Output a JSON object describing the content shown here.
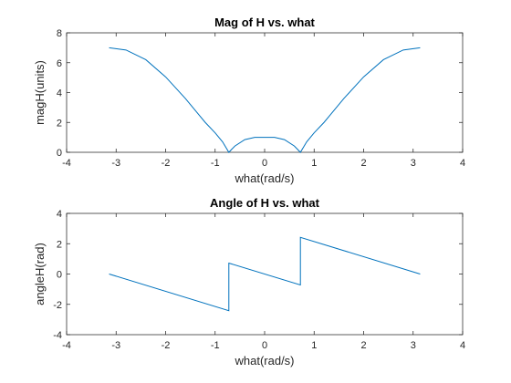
{
  "figure": {
    "background": "#ffffff",
    "line_color": "#0072BD"
  },
  "chart_data": [
    {
      "type": "line",
      "title": "Mag of H vs. what",
      "xlabel": "what(rad/s)",
      "ylabel": "magH(units)",
      "xlim": [
        -4,
        4
      ],
      "ylim": [
        0,
        8
      ],
      "xticks": [
        -4,
        -3,
        -2,
        -1,
        0,
        1,
        2,
        3,
        4
      ],
      "yticks": [
        0,
        2,
        4,
        6,
        8
      ],
      "grid": false,
      "series": [
        {
          "x": [
            -3.1416,
            -2.8,
            -2.4,
            -2.0,
            -1.6,
            -1.2,
            -1.0,
            -0.85,
            -0.7227,
            -0.6,
            -0.4,
            -0.2,
            0.0,
            0.2,
            0.4,
            0.6,
            0.7227,
            0.85,
            1.0,
            1.2,
            1.6,
            2.0,
            2.4,
            2.8,
            3.1416
          ],
          "y": [
            7.0,
            6.85,
            6.2,
            5.05,
            3.6,
            2.0,
            1.3,
            0.7,
            0.0,
            0.42,
            0.85,
            1.0,
            1.0,
            1.0,
            0.85,
            0.42,
            0.0,
            0.7,
            1.3,
            2.0,
            3.6,
            5.05,
            6.2,
            6.85,
            7.0
          ]
        }
      ]
    },
    {
      "type": "line",
      "title": "Angle of H vs. what",
      "xlabel": "what(rad/s)",
      "ylabel": "angleH(rad)",
      "xlim": [
        -4,
        4
      ],
      "ylim": [
        -4,
        4
      ],
      "xticks": [
        -4,
        -3,
        -2,
        -1,
        0,
        1,
        2,
        3,
        4
      ],
      "yticks": [
        -4,
        -2,
        0,
        2,
        4
      ],
      "grid": false,
      "series": [
        {
          "x": [
            -3.1416,
            -0.7227,
            -0.7227,
            0.7227,
            0.7227,
            3.1416
          ],
          "y": [
            0.0,
            -2.42,
            0.72,
            -0.72,
            2.42,
            0.0
          ]
        }
      ]
    }
  ]
}
